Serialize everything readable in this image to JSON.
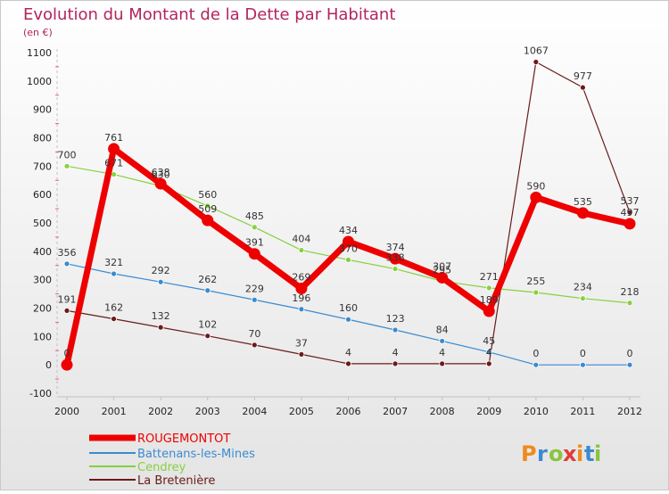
{
  "chart_data": {
    "type": "line",
    "title": "Evolution du Montant de la Dette par Habitant",
    "subtitle": "(en €)",
    "x": [
      "2000",
      "2001",
      "2002",
      "2003",
      "2004",
      "2005",
      "2006",
      "2007",
      "2008",
      "2009",
      "2010",
      "2011",
      "2012"
    ],
    "ylim": [
      -100,
      1100
    ],
    "yticks": [
      -100,
      0,
      100,
      200,
      300,
      400,
      500,
      600,
      700,
      800,
      900,
      1000,
      1100
    ],
    "grid": false,
    "legend_position": "bottom-left",
    "series": [
      {
        "name": "ROUGEMONTOT",
        "color": "#ee0000",
        "values": [
          0,
          761,
          638,
          509,
          391,
          269,
          434,
          374,
          307,
          189,
          590,
          535,
          497
        ]
      },
      {
        "name": "Battenans-les-Mines",
        "color": "#3a8ad0",
        "values": [
          356,
          321,
          292,
          262,
          229,
          196,
          160,
          123,
          84,
          45,
          0,
          0,
          0
        ]
      },
      {
        "name": "Cendrey",
        "color": "#88d040",
        "values": [
          700,
          671,
          630,
          560,
          485,
          404,
          370,
          338,
          295,
          271,
          255,
          234,
          218
        ]
      },
      {
        "name": "La Bretenière",
        "color": "#6b1a1a",
        "values": [
          191,
          162,
          132,
          102,
          70,
          37,
          4,
          4,
          4,
          4,
          1067,
          977,
          537
        ]
      }
    ]
  },
  "branding": {
    "logo_text": "Proxiti",
    "logo_colors": [
      "#f08a1c",
      "#3a8ad0",
      "#88c540",
      "#e23a3a",
      "#f08a1c",
      "#3a8ad0",
      "#88c540"
    ]
  }
}
